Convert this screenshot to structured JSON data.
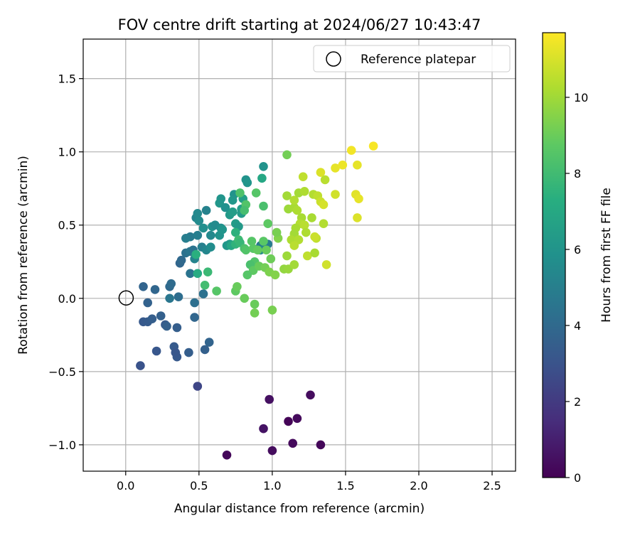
{
  "chart_data": {
    "type": "scatter",
    "title": "FOV centre drift starting at 2024/06/27 10:43:47",
    "xlabel": "Angular distance from reference (arcmin)",
    "ylabel": "Rotation from reference (arcmin)",
    "xlim": [
      -0.29,
      2.66
    ],
    "ylim": [
      -1.18,
      1.77
    ],
    "xticks": [
      0.0,
      0.5,
      1.0,
      1.5,
      2.0,
      2.5
    ],
    "xtick_labels": [
      "0.0",
      "0.5",
      "1.0",
      "1.5",
      "2.0",
      "2.5"
    ],
    "yticks": [
      -1.0,
      -0.5,
      0.0,
      0.5,
      1.0,
      1.5
    ],
    "ytick_labels": [
      "−1.0",
      "−0.5",
      "0.0",
      "0.5",
      "1.0",
      "1.5"
    ],
    "grid": true,
    "legend": {
      "position": "top-right",
      "entries": [
        "Reference platepar"
      ]
    },
    "colorbar": {
      "label": "Hours from first FF file",
      "range": [
        0,
        11.7
      ],
      "ticks": [
        0,
        2,
        4,
        6,
        8,
        10
      ],
      "tick_labels": [
        "0",
        "2",
        "4",
        "6",
        "8",
        "10"
      ],
      "colormap": "viridis"
    },
    "reference": {
      "x": 0.0,
      "y": 0.0,
      "label": "Reference platepar"
    },
    "points": [
      [
        0.69,
        -1.07,
        0.2
      ],
      [
        1.0,
        -1.04,
        0.4
      ],
      [
        0.94,
        -0.89,
        0.6
      ],
      [
        1.14,
        -0.99,
        0.3
      ],
      [
        1.33,
        -1.0,
        0.2
      ],
      [
        1.11,
        -0.84,
        0.1
      ],
      [
        1.17,
        -0.82,
        0.3
      ],
      [
        0.98,
        -0.69,
        0.5
      ],
      [
        1.26,
        -0.66,
        0.4
      ],
      [
        0.49,
        -0.6,
        2.5
      ],
      [
        0.1,
        -0.46,
        3.0
      ],
      [
        0.21,
        -0.36,
        3.2
      ],
      [
        0.35,
        -0.4,
        3.3
      ],
      [
        0.33,
        -0.33,
        3.4
      ],
      [
        0.34,
        -0.37,
        3.2
      ],
      [
        0.43,
        -0.37,
        3.5
      ],
      [
        0.54,
        -0.35,
        3.6
      ],
      [
        0.57,
        -0.3,
        3.8
      ],
      [
        0.12,
        -0.16,
        3.3
      ],
      [
        0.15,
        -0.16,
        3.4
      ],
      [
        0.18,
        -0.14,
        3.5
      ],
      [
        0.24,
        -0.12,
        3.6
      ],
      [
        0.27,
        -0.18,
        3.4
      ],
      [
        0.28,
        -0.19,
        3.6
      ],
      [
        0.35,
        -0.2,
        3.5
      ],
      [
        0.15,
        -0.03,
        3.7
      ],
      [
        0.47,
        -0.13,
        3.9
      ],
      [
        0.12,
        0.08,
        3.8
      ],
      [
        0.2,
        0.06,
        3.9
      ],
      [
        0.3,
        0.08,
        4.0
      ],
      [
        0.31,
        0.1,
        4.1
      ],
      [
        0.36,
        0.01,
        4.2
      ],
      [
        0.47,
        -0.03,
        4.3
      ],
      [
        0.53,
        0.03,
        4.4
      ],
      [
        0.3,
        0.0,
        4.6
      ],
      [
        0.44,
        0.17,
        4.5
      ],
      [
        0.37,
        0.24,
        3.9
      ],
      [
        0.38,
        0.26,
        4.0
      ],
      [
        0.41,
        0.31,
        4.4
      ],
      [
        0.44,
        0.32,
        4.6
      ],
      [
        0.46,
        0.33,
        4.5
      ],
      [
        0.44,
        0.42,
        4.8
      ],
      [
        0.41,
        0.41,
        5.0
      ],
      [
        0.49,
        0.43,
        5.0
      ],
      [
        0.47,
        0.27,
        5.3
      ],
      [
        0.52,
        0.35,
        5.1
      ],
      [
        0.55,
        0.33,
        5.4
      ],
      [
        0.55,
        0.6,
        5.2
      ],
      [
        0.48,
        0.55,
        5.3
      ],
      [
        0.49,
        0.58,
        5.5
      ],
      [
        0.5,
        0.53,
        5.6
      ],
      [
        0.53,
        0.48,
        5.8
      ],
      [
        0.58,
        0.43,
        5.5
      ],
      [
        0.58,
        0.35,
        5.7
      ],
      [
        0.59,
        0.49,
        5.9
      ],
      [
        0.61,
        0.5,
        5.6
      ],
      [
        0.64,
        0.43,
        6.0
      ],
      [
        0.65,
        0.48,
        5.8
      ],
      [
        0.66,
        0.47,
        6.1
      ],
      [
        0.64,
        0.65,
        6.2
      ],
      [
        0.65,
        0.68,
        6.1
      ],
      [
        0.68,
        0.62,
        5.9
      ],
      [
        0.71,
        0.57,
        6.3
      ],
      [
        0.71,
        0.37,
        6.4
      ],
      [
        0.69,
        0.36,
        6.2
      ],
      [
        0.73,
        0.59,
        6.5
      ],
      [
        0.75,
        0.51,
        6.4
      ],
      [
        0.77,
        0.49,
        6.3
      ],
      [
        0.74,
        0.71,
        6.0
      ],
      [
        0.73,
        0.67,
        6.2
      ],
      [
        0.79,
        0.61,
        6.5
      ],
      [
        0.79,
        0.58,
        6.4
      ],
      [
        0.8,
        0.68,
        6.6
      ],
      [
        0.82,
        0.81,
        6.0
      ],
      [
        0.83,
        0.79,
        6.1
      ],
      [
        0.94,
        0.9,
        6.0
      ],
      [
        0.93,
        0.82,
        7.0
      ],
      [
        0.78,
        0.72,
        8.4
      ],
      [
        0.82,
        0.64,
        8.5
      ],
      [
        0.81,
        0.6,
        8.2
      ],
      [
        0.89,
        0.72,
        8.6
      ],
      [
        0.94,
        0.63,
        8.3
      ],
      [
        0.92,
        0.36,
        4.7
      ],
      [
        0.97,
        0.37,
        4.9
      ],
      [
        0.92,
        0.33,
        5.5
      ],
      [
        0.72,
        0.36,
        7.0
      ],
      [
        0.75,
        0.37,
        7.6
      ],
      [
        0.75,
        0.45,
        7.5
      ],
      [
        0.77,
        0.4,
        8.0
      ],
      [
        0.78,
        0.38,
        7.8
      ],
      [
        0.81,
        0.34,
        8.3
      ],
      [
        0.82,
        0.33,
        8.5
      ],
      [
        0.86,
        0.39,
        8.6
      ],
      [
        0.87,
        0.34,
        8.7
      ],
      [
        0.9,
        0.33,
        8.9
      ],
      [
        0.94,
        0.39,
        8.7
      ],
      [
        0.96,
        0.33,
        9.0
      ],
      [
        0.97,
        0.51,
        8.8
      ],
      [
        0.88,
        0.25,
        8.5
      ],
      [
        0.85,
        0.23,
        8.3
      ],
      [
        0.87,
        0.19,
        8.8
      ],
      [
        0.91,
        0.22,
        9.0
      ],
      [
        0.95,
        0.21,
        9.2
      ],
      [
        0.98,
        0.18,
        9.4
      ],
      [
        0.99,
        0.27,
        9.1
      ],
      [
        1.02,
        0.16,
        9.5
      ],
      [
        1.04,
        0.41,
        9.5
      ],
      [
        1.03,
        0.45,
        9.3
      ],
      [
        0.56,
        0.18,
        7.9
      ],
      [
        0.54,
        0.09,
        8.1
      ],
      [
        0.62,
        0.05,
        8.6
      ],
      [
        0.75,
        0.05,
        8.8
      ],
      [
        0.76,
        0.08,
        9.0
      ],
      [
        0.81,
        0.0,
        9.0
      ],
      [
        0.83,
        0.16,
        8.6
      ],
      [
        0.88,
        -0.04,
        9.0
      ],
      [
        0.88,
        -0.1,
        9.2
      ],
      [
        1.0,
        -0.08,
        9.3
      ],
      [
        0.48,
        0.3,
        7.4
      ],
      [
        0.49,
        0.17,
        7.2
      ],
      [
        1.1,
        0.98,
        9.2
      ],
      [
        1.08,
        0.2,
        9.8
      ],
      [
        1.11,
        0.2,
        9.9
      ],
      [
        1.1,
        0.29,
        10.0
      ],
      [
        1.15,
        0.23,
        10.1
      ],
      [
        1.11,
        0.61,
        10.0
      ],
      [
        1.1,
        0.7,
        10.1
      ],
      [
        1.15,
        0.62,
        10.2
      ],
      [
        1.17,
        0.6,
        10.3
      ],
      [
        1.15,
        0.67,
        10.4
      ],
      [
        1.18,
        0.72,
        10.1
      ],
      [
        1.22,
        0.73,
        10.3
      ],
      [
        1.21,
        0.83,
        10.6
      ],
      [
        1.2,
        0.55,
        10.2
      ],
      [
        1.19,
        0.51,
        10.4
      ],
      [
        1.22,
        0.5,
        10.5
      ],
      [
        1.27,
        0.55,
        10.2
      ],
      [
        1.23,
        0.45,
        10.3
      ],
      [
        1.16,
        0.48,
        10.2
      ],
      [
        1.15,
        0.44,
        10.1
      ],
      [
        1.13,
        0.4,
        10.3
      ],
      [
        1.18,
        0.4,
        10.4
      ],
      [
        1.15,
        0.36,
        10.5
      ],
      [
        1.24,
        0.29,
        10.6
      ],
      [
        1.29,
        0.31,
        10.2
      ],
      [
        1.3,
        0.41,
        10.6
      ],
      [
        1.29,
        0.42,
        10.8
      ],
      [
        1.28,
        0.71,
        10.4
      ],
      [
        1.31,
        0.7,
        10.6
      ],
      [
        1.33,
        0.66,
        10.8
      ],
      [
        1.35,
        0.64,
        11.0
      ],
      [
        1.35,
        0.51,
        10.4
      ],
      [
        1.36,
        0.81,
        10.5
      ],
      [
        1.37,
        0.23,
        10.9
      ],
      [
        1.33,
        0.86,
        11.1
      ],
      [
        1.43,
        0.89,
        11.3
      ],
      [
        1.43,
        0.71,
        10.9
      ],
      [
        1.48,
        0.91,
        11.4
      ],
      [
        1.54,
        1.01,
        11.5
      ],
      [
        1.58,
        0.91,
        11.3
      ],
      [
        1.57,
        0.71,
        11.2
      ],
      [
        1.59,
        0.68,
        11.3
      ],
      [
        1.58,
        0.55,
        11.1
      ],
      [
        1.69,
        1.04,
        11.6
      ]
    ]
  }
}
